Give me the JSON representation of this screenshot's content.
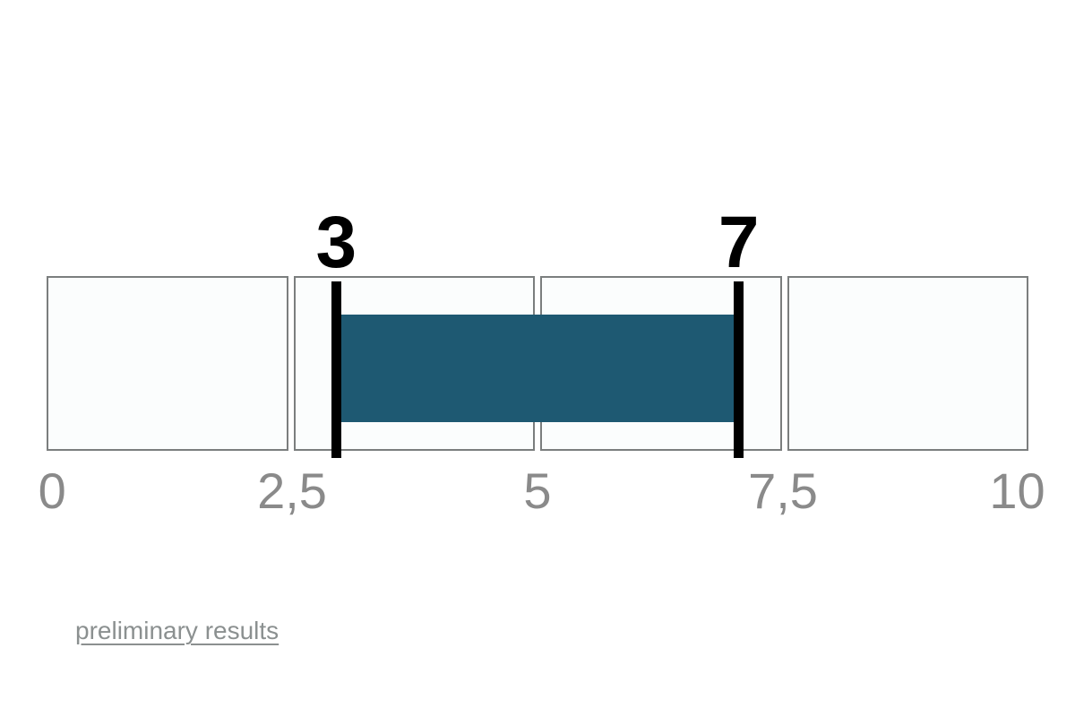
{
  "page": {
    "background": "#ffffff"
  },
  "chart_data": {
    "type": "bar",
    "subtype": "range-gauge",
    "title": "",
    "axis": {
      "min": 0,
      "max": 10,
      "tick_values": [
        0,
        2.5,
        5,
        7.5,
        10
      ],
      "tick_labels": [
        "0",
        "2,5",
        "5",
        "7,5",
        "10"
      ],
      "decimal_separator": ",",
      "grid": "segmented-boxes",
      "segments": 4
    },
    "range": {
      "low": 3,
      "high": 7,
      "low_label": "3",
      "high_label": "7"
    },
    "colors": {
      "bar": "#1E5972",
      "marker": "#000000",
      "segment_fill": "#FBFDFD",
      "segment_border": "#7B7E7E",
      "tick_label": "#8A8A8A",
      "value_label": "#000000"
    }
  },
  "footer": {
    "link_label": "preliminary results",
    "link_color": "#8B9090"
  }
}
